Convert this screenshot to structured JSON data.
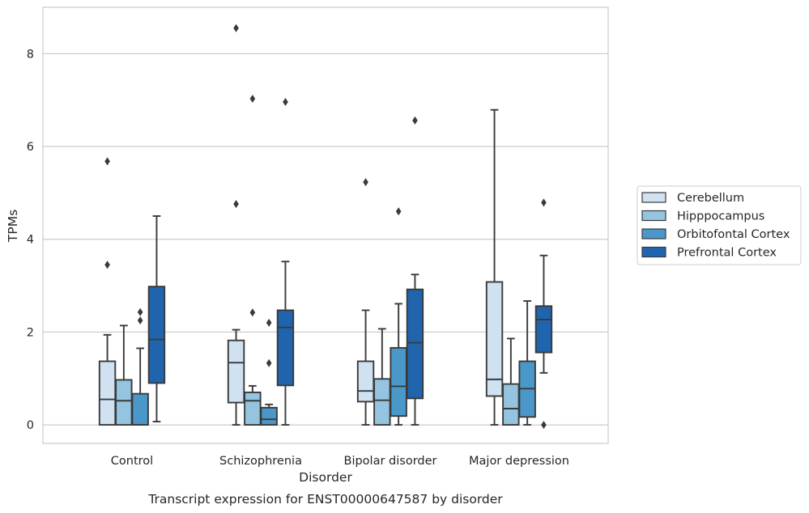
{
  "chart_data": {
    "type": "box",
    "title": "Transcript expression for ENST00000647587 by disorder",
    "xlabel": "Disorder",
    "ylabel": "TPMs",
    "ylim": [
      -0.4,
      9.0
    ],
    "yticks": [
      0,
      2,
      4,
      6,
      8
    ],
    "grid": true,
    "legend_position": "right",
    "categories": [
      "Control",
      "Schizophrenia",
      "Bipolar disorder",
      "Major depression"
    ],
    "series": [
      {
        "name": "Cerebellum",
        "color": "#d0e1f2",
        "boxes": [
          {
            "whisker_low": 0.0,
            "q1": 0.0,
            "median": 0.55,
            "q3": 1.37,
            "whisker_high": 1.94,
            "outliers": [
              3.45,
              5.68
            ]
          },
          {
            "whisker_low": 0.0,
            "q1": 0.48,
            "median": 1.34,
            "q3": 1.82,
            "whisker_high": 2.05,
            "outliers": [
              4.76,
              8.55
            ]
          },
          {
            "whisker_low": 0.0,
            "q1": 0.5,
            "median": 0.73,
            "q3": 1.37,
            "whisker_high": 2.47,
            "outliers": [
              5.23
            ]
          },
          {
            "whisker_low": 0.0,
            "q1": 0.62,
            "median": 0.98,
            "q3": 3.08,
            "whisker_high": 6.79,
            "outliers": []
          }
        ]
      },
      {
        "name": "Hipppocampus",
        "color": "#94c4df",
        "boxes": [
          {
            "whisker_low": 0.0,
            "q1": 0.0,
            "median": 0.52,
            "q3": 0.97,
            "whisker_high": 2.14,
            "outliers": []
          },
          {
            "whisker_low": 0.0,
            "q1": 0.0,
            "median": 0.52,
            "q3": 0.7,
            "whisker_high": 0.84,
            "outliers": [
              2.42,
              7.03
            ]
          },
          {
            "whisker_low": 0.0,
            "q1": 0.0,
            "median": 0.53,
            "q3": 0.99,
            "whisker_high": 2.07,
            "outliers": []
          },
          {
            "whisker_low": 0.0,
            "q1": 0.0,
            "median": 0.35,
            "q3": 0.88,
            "whisker_high": 1.86,
            "outliers": []
          }
        ]
      },
      {
        "name": "Orbitofontal Cortex",
        "color": "#4a98c9",
        "boxes": [
          {
            "whisker_low": 0.0,
            "q1": 0.0,
            "median": 0.0,
            "q3": 0.67,
            "whisker_high": 1.65,
            "outliers": [
              2.25,
              2.43
            ]
          },
          {
            "whisker_low": 0.0,
            "q1": 0.0,
            "median": 0.12,
            "q3": 0.37,
            "whisker_high": 0.44,
            "outliers": [
              1.33,
              2.2
            ]
          },
          {
            "whisker_low": 0.0,
            "q1": 0.19,
            "median": 0.83,
            "q3": 1.66,
            "whisker_high": 2.61,
            "outliers": [
              4.6
            ]
          },
          {
            "whisker_low": 0.0,
            "q1": 0.17,
            "median": 0.78,
            "q3": 1.37,
            "whisker_high": 2.67,
            "outliers": []
          }
        ]
      },
      {
        "name": "Prefrontal Cortex",
        "color": "#2064ae",
        "boxes": [
          {
            "whisker_low": 0.07,
            "q1": 0.9,
            "median": 1.84,
            "q3": 2.98,
            "whisker_high": 4.5,
            "outliers": []
          },
          {
            "whisker_low": 0.0,
            "q1": 0.85,
            "median": 2.1,
            "q3": 2.47,
            "whisker_high": 3.52,
            "outliers": [
              6.96
            ]
          },
          {
            "whisker_low": 0.0,
            "q1": 0.57,
            "median": 1.77,
            "q3": 2.92,
            "whisker_high": 3.24,
            "outliers": [
              6.56
            ]
          },
          {
            "whisker_low": 1.12,
            "q1": 1.56,
            "median": 2.27,
            "q3": 2.56,
            "whisker_high": 3.65,
            "outliers": [
              0.0,
              4.79
            ]
          }
        ]
      }
    ]
  }
}
